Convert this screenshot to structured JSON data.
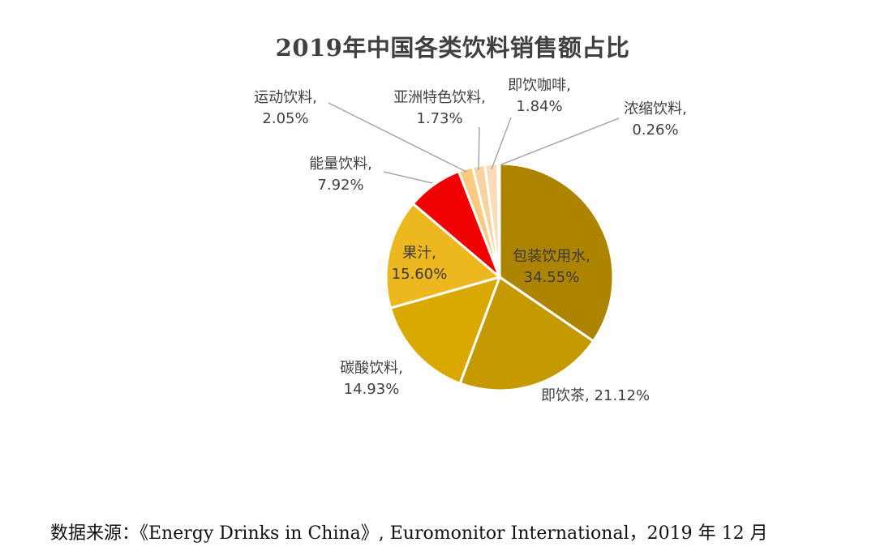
{
  "chart_data": {
    "type": "pie",
    "title": "2019年中国各类饮料销售额占比",
    "start_angle_deg": 0,
    "direction": "clockwise",
    "slices": [
      {
        "name": "包装饮用水",
        "label": "包装饮用水,",
        "value_text": "34.55%",
        "value": 34.55,
        "color": "#AD8400"
      },
      {
        "name": "即饮茶",
        "label": "即饮茶,",
        "value_text": "21.12%",
        "value": 21.12,
        "color": "#C59A00"
      },
      {
        "name": "碳酸饮料",
        "label": "碳酸饮料,",
        "value_text": "14.93%",
        "value": 14.93,
        "color": "#DAA900"
      },
      {
        "name": "果汁",
        "label": "果汁,",
        "value_text": "15.60%",
        "value": 15.6,
        "color": "#EDB720"
      },
      {
        "name": "能量饮料",
        "label": "能量饮料,",
        "value_text": "7.92%",
        "value": 7.92,
        "color": "#F00000"
      },
      {
        "name": "运动饮料",
        "label": "运动饮料,",
        "value_text": "2.05%",
        "value": 2.05,
        "color": "#F9CA80"
      },
      {
        "name": "亚洲特色饮料",
        "label": "亚洲特色饮料,",
        "value_text": "1.73%",
        "value": 1.73,
        "color": "#F8D2A0"
      },
      {
        "name": "即饮咖啡",
        "label": "即饮咖啡,",
        "value_text": "1.84%",
        "value": 1.84,
        "color": "#FADDB8"
      },
      {
        "name": "浓缩饮料",
        "label": "浓缩饮料,",
        "value_text": "0.26%",
        "value": 0.26,
        "color": "#FCE8CC"
      }
    ]
  },
  "source": {
    "text": "数据来源：《Energy Drinks in China》, Euromonitor International，2019 年 12 月"
  }
}
